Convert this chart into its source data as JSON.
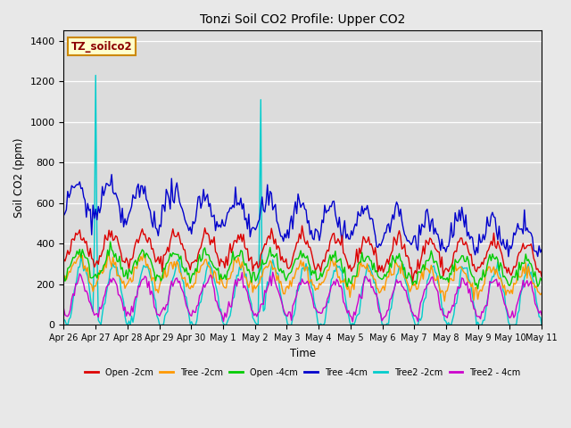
{
  "title": "Tonzi Soil CO2 Profile: Upper CO2",
  "xlabel": "Time",
  "ylabel": "Soil CO2 (ppm)",
  "ylim": [
    0,
    1450
  ],
  "yticks": [
    0,
    200,
    400,
    600,
    800,
    1000,
    1200,
    1400
  ],
  "fig_bg": "#e8e8e8",
  "plot_bg": "#dcdcdc",
  "grid_color": "white",
  "label_box": "TZ_soilco2",
  "label_box_bg": "#ffffcc",
  "label_box_edge": "#cc8800",
  "date_labels": [
    "Apr 26",
    "Apr 27",
    "Apr 28",
    "Apr 29",
    "Apr 30",
    "May 1",
    "May 2",
    "May 3",
    "May 4",
    "May 5",
    "May 6",
    "May 7",
    "May 8",
    "May 9",
    "May 10",
    "May 11"
  ],
  "legend_colors": [
    "#dd0000",
    "#ff9900",
    "#00cc00",
    "#0000cc",
    "#00cccc",
    "#cc00cc"
  ],
  "legend_labels": [
    "Open -2cm",
    "Tree -2cm",
    "Open -4cm",
    "Tree -4cm",
    "Tree2 -2cm",
    "Tree2 - 4cm"
  ]
}
